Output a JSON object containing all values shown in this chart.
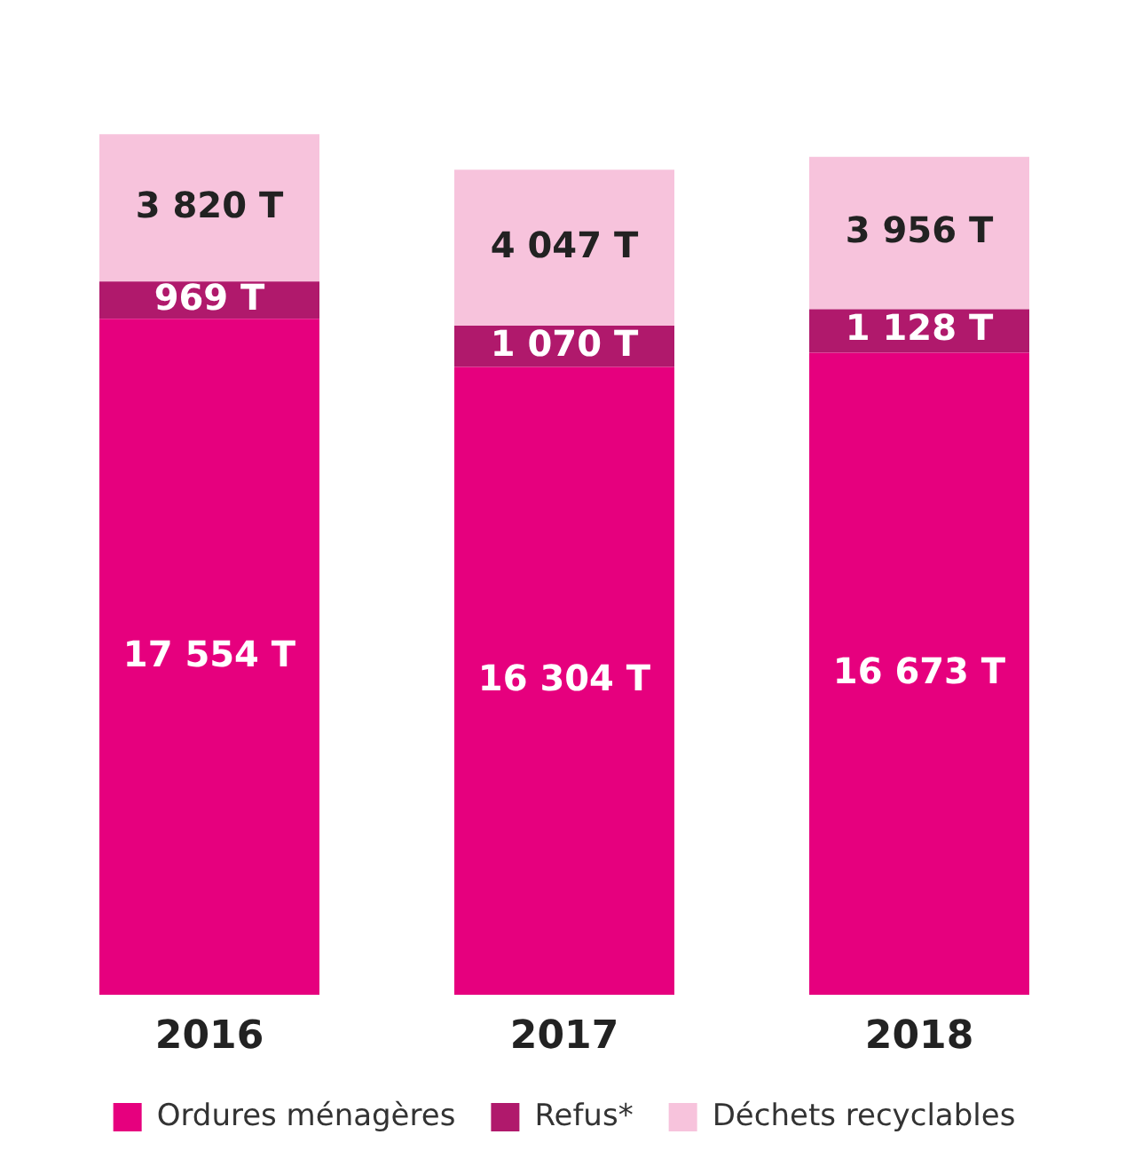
{
  "chart_data": {
    "type": "bar",
    "stacked": true,
    "categories": [
      "2016",
      "2017",
      "2018"
    ],
    "series": [
      {
        "name": "Ordures ménagères",
        "color": "#e6007e",
        "values": [
          17554,
          16304,
          16673
        ],
        "value_labels": [
          "17 554 T",
          "16 304 T",
          "16 673 T"
        ]
      },
      {
        "name": "Refus*",
        "color": "#b0196c",
        "values": [
          969,
          1070,
          1128
        ],
        "value_labels": [
          "969 T",
          "1 070 T",
          "1 128 T"
        ]
      },
      {
        "name": "Déchets recyclables",
        "color": "#f7c3dc",
        "values": [
          3820,
          4047,
          3956
        ],
        "value_labels": [
          "3 820 T",
          "4 047 T",
          "3 956 T"
        ]
      }
    ],
    "legend": "bottom",
    "tick_labels": "x"
  }
}
